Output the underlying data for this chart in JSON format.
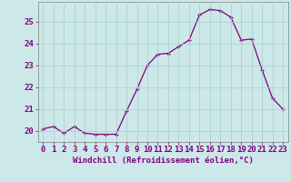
{
  "x": [
    0,
    1,
    2,
    3,
    4,
    5,
    6,
    7,
    8,
    9,
    10,
    11,
    12,
    13,
    14,
    15,
    16,
    17,
    18,
    19,
    20,
    21,
    22,
    23
  ],
  "y": [
    20.1,
    20.2,
    19.9,
    20.2,
    19.9,
    19.85,
    19.85,
    19.85,
    20.9,
    21.9,
    23.0,
    23.5,
    23.55,
    23.85,
    24.15,
    25.3,
    25.55,
    25.5,
    25.2,
    24.15,
    24.2,
    22.8,
    21.5,
    21.0
  ],
  "line_color": "#800080",
  "marker_color": "#800080",
  "bg_color": "#cce8e8",
  "grid_color": "#aacccc",
  "xlabel": "Windchill (Refroidissement éolien,°C)",
  "ylabel_ticks": [
    20,
    21,
    22,
    23,
    24,
    25
  ],
  "xticks": [
    0,
    1,
    2,
    3,
    4,
    5,
    6,
    7,
    8,
    9,
    10,
    11,
    12,
    13,
    14,
    15,
    16,
    17,
    18,
    19,
    20,
    21,
    22,
    23
  ],
  "ylim": [
    19.5,
    25.9
  ],
  "xlim": [
    -0.5,
    23.5
  ],
  "line_color_hex": "#800080",
  "xlabel_fontsize": 6.5,
  "tick_fontsize": 6.5
}
